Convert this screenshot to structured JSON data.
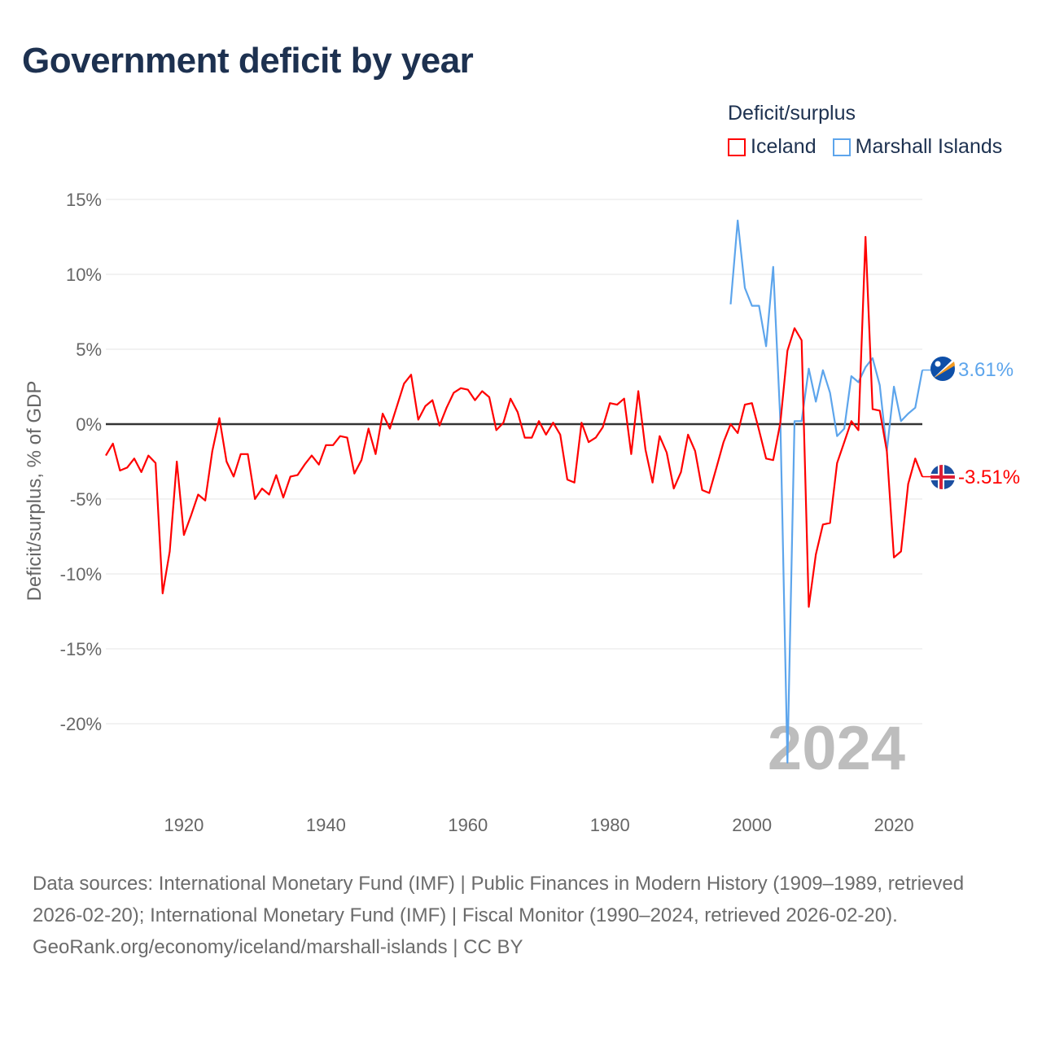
{
  "title": "Government deficit by year",
  "legend": {
    "title": "Deficit/surplus",
    "items": [
      {
        "label": "Iceland",
        "color": "#ff0000"
      },
      {
        "label": "Marshall Islands",
        "color": "#5da5ec"
      }
    ]
  },
  "chart_data": {
    "type": "line",
    "title": "Government deficit by year",
    "xlabel": "",
    "ylabel": "Deficit/surplus, % of GDP",
    "xlim": [
      1909,
      2024
    ],
    "ylim": [
      -25,
      15
    ],
    "x_ticks": [
      "1920",
      "1940",
      "1960",
      "1980",
      "2000",
      "2020"
    ],
    "x_tick_values": [
      1920,
      1940,
      1960,
      1980,
      2000,
      2020
    ],
    "y_ticks": [
      "15%",
      "10%",
      "5%",
      "0%",
      "-5%",
      "-10%",
      "-15%",
      "-20%"
    ],
    "y_tick_values": [
      15,
      10,
      5,
      0,
      -5,
      -10,
      -15,
      -20
    ],
    "grid": true,
    "year_watermark": "2024",
    "series": [
      {
        "name": "Iceland",
        "color": "#ff0000",
        "end_label": "-3.51%",
        "flag": "iceland-flag",
        "start_year": 1909,
        "values": [
          -2.1,
          -1.3,
          -3.1,
          -2.9,
          -2.3,
          -3.2,
          -2.1,
          -2.6,
          -11.3,
          -8.5,
          -2.5,
          -7.4,
          -6.1,
          -4.7,
          -5.1,
          -1.8,
          0.4,
          -2.5,
          -3.5,
          -2.0,
          -2.0,
          -5.0,
          -4.3,
          -4.7,
          -3.4,
          -4.9,
          -3.5,
          -3.4,
          -2.7,
          -2.1,
          -2.7,
          -1.4,
          -1.4,
          -0.8,
          -0.9,
          -3.3,
          -2.4,
          -0.3,
          -2.0,
          0.7,
          -0.3,
          1.2,
          2.7,
          3.3,
          0.3,
          1.2,
          1.6,
          -0.1,
          1.1,
          2.1,
          2.4,
          2.3,
          1.6,
          2.2,
          1.8,
          -0.4,
          0.1,
          1.7,
          0.8,
          -0.9,
          -0.9,
          0.2,
          -0.7,
          0.1,
          -0.7,
          -3.7,
          -3.9,
          0.1,
          -1.2,
          -0.9,
          -0.2,
          1.4,
          1.3,
          1.7,
          -2.0,
          2.2,
          -1.7,
          -3.9,
          -0.8,
          -1.9,
          -4.3,
          -3.2,
          -0.7,
          -1.8,
          -4.4,
          -4.6,
          -2.9,
          -1.2,
          0.0,
          -0.6,
          1.3,
          1.4,
          -0.4,
          -2.3,
          -2.4,
          0.1,
          4.9,
          6.4,
          5.6,
          -12.2,
          -8.7,
          -6.7,
          -6.6,
          -2.6,
          -1.2,
          0.2,
          -0.4,
          12.5,
          1.0,
          0.9,
          -1.8,
          -8.9,
          -8.5,
          -4.0,
          -2.3,
          -3.51
        ]
      },
      {
        "name": "Marshall Islands",
        "color": "#5da5ec",
        "end_label": "3.61%",
        "flag": "marshall-islands-flag",
        "start_year": 1997,
        "values": [
          8.0,
          13.6,
          9.1,
          7.9,
          7.9,
          5.2,
          10.5,
          0.2,
          -22.6,
          0.2,
          0.2,
          3.7,
          1.5,
          3.6,
          2.1,
          -0.8,
          -0.3,
          3.2,
          2.8,
          3.8,
          4.4,
          2.6,
          -1.8,
          2.5,
          0.2,
          0.7,
          1.1,
          3.61
        ]
      }
    ]
  },
  "footer": {
    "sources": "Data sources: International Monetary Fund (IMF) | Public Finances in Modern History (1909–1989, retrieved 2026-02-20); International Monetary Fund (IMF) | Fiscal Monitor (1990–2024, retrieved 2026-02-20).",
    "link": "GeoRank.org/economy/iceland/marshall-islands",
    "license": " | CC BY"
  }
}
